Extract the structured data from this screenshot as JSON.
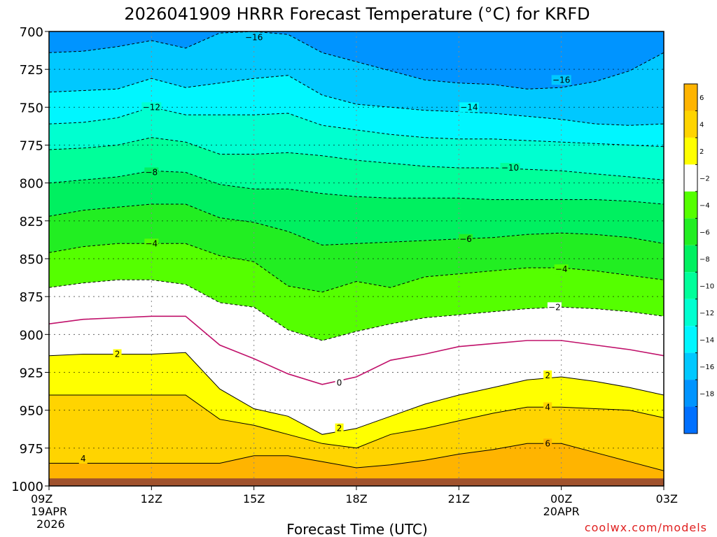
{
  "chart_data": {
    "type": "heatmap",
    "title": "2026041909 HRRR Forecast Temperature (°C) for KRFD",
    "xlabel": "Forecast Time (UTC)",
    "ylabel": "",
    "credit": "coolwx.com/models",
    "x_ticks": [
      {
        "hour": 0,
        "label": "09Z",
        "sub1": "19APR",
        "sub2": "2026"
      },
      {
        "hour": 3,
        "label": "12Z",
        "sub1": "",
        "sub2": ""
      },
      {
        "hour": 6,
        "label": "15Z",
        "sub1": "",
        "sub2": ""
      },
      {
        "hour": 9,
        "label": "18Z",
        "sub1": "",
        "sub2": ""
      },
      {
        "hour": 12,
        "label": "21Z",
        "sub1": "",
        "sub2": ""
      },
      {
        "hour": 15,
        "label": "00Z",
        "sub1": "20APR",
        "sub2": ""
      },
      {
        "hour": 18,
        "label": "03Z",
        "sub1": "",
        "sub2": ""
      }
    ],
    "xlim": [
      0,
      18
    ],
    "y_ticks": [
      "700",
      "725",
      "750",
      "775",
      "800",
      "825",
      "850",
      "875",
      "900",
      "925",
      "950",
      "975",
      "1000"
    ],
    "ylim": [
      1000,
      700
    ],
    "hours": [
      0,
      1,
      2,
      3,
      4,
      5,
      6,
      7,
      8,
      9,
      10,
      11,
      12,
      13,
      14,
      15,
      16,
      17,
      18
    ],
    "isotherms": [
      {
        "temp": -16,
        "pressure": [
          714,
          713,
          710,
          706,
          711,
          701,
          700,
          702,
          714,
          720,
          726,
          732,
          734,
          735,
          738,
          737,
          733,
          726,
          714
        ]
      },
      {
        "temp": -14,
        "pressure": [
          740,
          739,
          738,
          731,
          737,
          734,
          731,
          729,
          742,
          748,
          750,
          752,
          753,
          754,
          756,
          758,
          761,
          762,
          761
        ]
      },
      {
        "temp": -12,
        "pressure": [
          761,
          760,
          757,
          750,
          755,
          755,
          755,
          754,
          762,
          765,
          768,
          770,
          771,
          771,
          772,
          773,
          774,
          775,
          776
        ]
      },
      {
        "temp": -10,
        "pressure": [
          778,
          777,
          775,
          770,
          773,
          781,
          781,
          780,
          782,
          785,
          787,
          789,
          790,
          790,
          791,
          792,
          794,
          796,
          798
        ]
      },
      {
        "temp": -8,
        "pressure": [
          800,
          798,
          796,
          792,
          793,
          801,
          804,
          804,
          807,
          809,
          810,
          810,
          810,
          811,
          811,
          811,
          811,
          812,
          814
        ]
      },
      {
        "temp": -6,
        "pressure": [
          822,
          818,
          816,
          814,
          814,
          823,
          826,
          832,
          841,
          840,
          839,
          838,
          837,
          836,
          834,
          833,
          834,
          836,
          840
        ]
      },
      {
        "temp": -4,
        "pressure": [
          846,
          842,
          840,
          840,
          840,
          848,
          852,
          868,
          872,
          865,
          869,
          862,
          860,
          858,
          856,
          856,
          858,
          861,
          864
        ]
      },
      {
        "temp": -2,
        "pressure": [
          869,
          866,
          864,
          864,
          867,
          879,
          882,
          897,
          904,
          898,
          893,
          889,
          887,
          885,
          883,
          882,
          883,
          885,
          888
        ]
      },
      {
        "temp": 0,
        "pressure": [
          893,
          890,
          889,
          888,
          888,
          907,
          916,
          926,
          933,
          928,
          917,
          913,
          908,
          906,
          904,
          904,
          907,
          910,
          914
        ]
      },
      {
        "temp": 2,
        "pressure": [
          914,
          913,
          913,
          913,
          912,
          936,
          949,
          954,
          966,
          962,
          954,
          946,
          940,
          935,
          930,
          928,
          931,
          935,
          940
        ]
      },
      {
        "temp": 4,
        "pressure": [
          940,
          940,
          940,
          940,
          940,
          956,
          960,
          966,
          972,
          975,
          966,
          962,
          957,
          952,
          948,
          948,
          949,
          950,
          955
        ]
      },
      {
        "temp": 6,
        "pressure": [
          985,
          985,
          985,
          985,
          985,
          985,
          980,
          980,
          984,
          988,
          986,
          983,
          979,
          976,
          972,
          972,
          978,
          984,
          990
        ]
      }
    ],
    "contour_labels": [
      {
        "text": "−16",
        "hour": 6.0,
        "pressure": 704
      },
      {
        "text": "−16",
        "hour": 15.0,
        "pressure": 732
      },
      {
        "text": "−14",
        "hour": 12.3,
        "pressure": 750
      },
      {
        "text": "−12",
        "hour": 3.0,
        "pressure": 750
      },
      {
        "text": "−10",
        "hour": 13.5,
        "pressure": 790
      },
      {
        "text": "−8",
        "hour": 3.0,
        "pressure": 793
      },
      {
        "text": "−6",
        "hour": 12.2,
        "pressure": 837
      },
      {
        "text": "−4",
        "hour": 3.0,
        "pressure": 840
      },
      {
        "text": "−4",
        "hour": 15.0,
        "pressure": 857
      },
      {
        "text": "−2",
        "hour": 14.8,
        "pressure": 882
      },
      {
        "text": "0",
        "hour": 8.5,
        "pressure": 932
      },
      {
        "text": "2",
        "hour": 2.0,
        "pressure": 913
      },
      {
        "text": "2",
        "hour": 8.5,
        "pressure": 962
      },
      {
        "text": "2",
        "hour": 14.6,
        "pressure": 927
      },
      {
        "text": "4",
        "hour": 1.0,
        "pressure": 982
      },
      {
        "text": "4",
        "hour": 14.6,
        "pressure": 948
      },
      {
        "text": "6",
        "hour": 14.6,
        "pressure": 972
      }
    ],
    "colorbar": {
      "labels": [
        "6",
        "4",
        "2",
        "−2",
        "−4",
        "−6",
        "−8",
        "−10",
        "−12",
        "−14",
        "−16",
        "−18"
      ],
      "bins": [
        {
          "lo": 6,
          "hi": 8,
          "color": "#ffb400"
        },
        {
          "lo": 4,
          "hi": 6,
          "color": "#ffd400"
        },
        {
          "lo": 2,
          "hi": 4,
          "color": "#ffff00"
        },
        {
          "lo": -2,
          "hi": 2,
          "color": "#ffffff"
        },
        {
          "lo": -4,
          "hi": -2,
          "color": "#55ff00"
        },
        {
          "lo": -6,
          "hi": -4,
          "color": "#22ee22"
        },
        {
          "lo": -8,
          "hi": -6,
          "color": "#00f060"
        },
        {
          "lo": -10,
          "hi": -8,
          "color": "#00ff9a"
        },
        {
          "lo": -12,
          "hi": -10,
          "color": "#00ffd0"
        },
        {
          "lo": -14,
          "hi": -12,
          "color": "#00f6ff"
        },
        {
          "lo": -16,
          "hi": -14,
          "color": "#00c8ff"
        },
        {
          "lo": -18,
          "hi": -16,
          "color": "#0094ff"
        },
        {
          "lo": -20,
          "hi": -18,
          "color": "#0070ff"
        }
      ]
    },
    "ground_color": "#a0522d",
    "line_color": "#000000",
    "freezing_line_color": "#c0106a"
  }
}
